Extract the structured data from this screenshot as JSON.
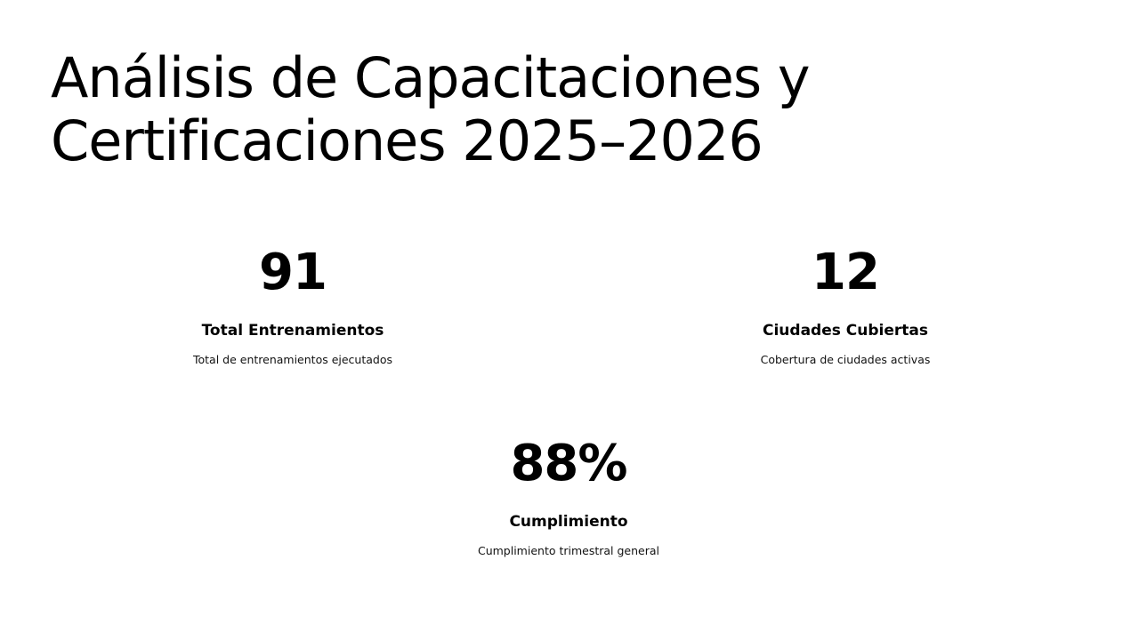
{
  "slide": {
    "title_line1": "Análisis de Capacitaciones y",
    "title_line2": "Certificaciones 2025–2026"
  },
  "stats": [
    {
      "value": "91",
      "label": "Total Entrenamientos",
      "description": "Total de entrenamientos ejecutados"
    },
    {
      "value": "12",
      "label": "Ciudades Cubiertas",
      "description": "Cobertura de ciudades activas"
    },
    {
      "value": "88%",
      "label": "Cumplimiento",
      "description": "Cumplimiento trimestral general"
    }
  ],
  "colors": {
    "background": "#ffffff",
    "text": "#000000"
  }
}
